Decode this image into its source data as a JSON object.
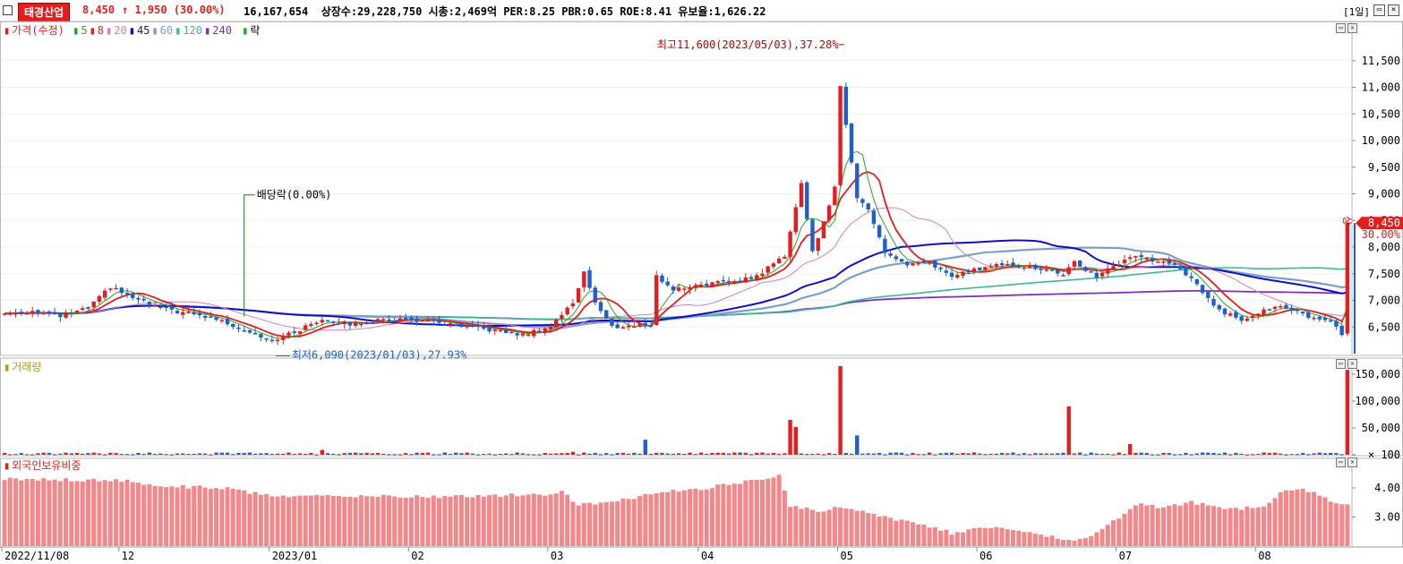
{
  "header": {
    "stock_name": "태경산업",
    "price": "8,450",
    "change_arrow": "↑",
    "change": "1,950",
    "change_pct": "(30.00%)",
    "volume": "16,167,654",
    "stats": "상장수:29,228,750 시총:2,469억 PER:8.25 PBR:0.65 ROE:8.41 유보율:1,626.22",
    "period": "[1일]",
    "colors": {
      "up": "#e41e1e",
      "down": "#1f5fcc"
    }
  },
  "legend": {
    "price_label": "가격(수정)",
    "ma": [
      {
        "label": "5",
        "color": "#22aa22"
      },
      {
        "label": "8",
        "color": "#e41e1e"
      },
      {
        "label": "20",
        "color": "#d080c0"
      },
      {
        "label": "45",
        "color": "#1010c0"
      },
      {
        "label": "60",
        "color": "#7aa0c8"
      },
      {
        "label": "120",
        "color": "#40b898"
      },
      {
        "label": "240",
        "color": "#8030b8"
      }
    ],
    "ex_div_label": "락",
    "volume_label": "거래량",
    "foreign_label": "외국인보유비중"
  },
  "annotations": {
    "high": "최고11,600(2023/05/03),37.28%",
    "low": "최저6,090(2023/01/03),27.93%",
    "ex_div": "배당락(0.00%)",
    "limit_up": "상",
    "last_price_tag": "8,450",
    "last_pct_tag": "30.00%"
  },
  "chart_data": [
    {
      "type": "candlestick",
      "title": "",
      "y_ticks": [
        6500,
        7000,
        7500,
        8000,
        8500,
        9000,
        9500,
        10000,
        10500,
        11000,
        11500
      ],
      "y_tick_labels": [
        "6,500",
        "7,000",
        "7,500",
        "8,000",
        "8,500",
        "9,000",
        "9,500",
        "10,000",
        "10,500",
        "11,000",
        "11,500"
      ],
      "ylim": [
        6000,
        12000
      ],
      "x_labels": [
        "2022/11/08",
        "12",
        "2023/01",
        "02",
        "03",
        "04",
        "05",
        "06",
        "07",
        "08"
      ],
      "x_label_index": [
        0,
        21,
        48,
        73,
        98,
        125,
        150,
        175,
        200,
        225
      ],
      "n": 242,
      "anchors_close": [
        [
          0,
          6750
        ],
        [
          5,
          6800
        ],
        [
          10,
          6700
        ],
        [
          15,
          6850
        ],
        [
          19,
          7250
        ],
        [
          23,
          7050
        ],
        [
          28,
          6850
        ],
        [
          33,
          6750
        ],
        [
          38,
          6650
        ],
        [
          43,
          6450
        ],
        [
          48,
          6250
        ],
        [
          52,
          6400
        ],
        [
          57,
          6650
        ],
        [
          62,
          6550
        ],
        [
          67,
          6620
        ],
        [
          72,
          6650
        ],
        [
          77,
          6600
        ],
        [
          82,
          6500
        ],
        [
          87,
          6450
        ],
        [
          93,
          6350
        ],
        [
          98,
          6520
        ],
        [
          102,
          6950
        ],
        [
          104,
          7550
        ],
        [
          106,
          6950
        ],
        [
          109,
          6500
        ],
        [
          113,
          6520
        ],
        [
          116,
          6550
        ],
        [
          117,
          7450
        ],
        [
          120,
          7200
        ],
        [
          125,
          7300
        ],
        [
          130,
          7350
        ],
        [
          135,
          7450
        ],
        [
          140,
          7850
        ],
        [
          143,
          9200
        ],
        [
          145,
          7900
        ],
        [
          149,
          9100
        ],
        [
          150,
          11000
        ],
        [
          151,
          10300
        ],
        [
          153,
          8950
        ],
        [
          155,
          8700
        ],
        [
          158,
          7900
        ],
        [
          162,
          7650
        ],
        [
          166,
          7700
        ],
        [
          170,
          7450
        ],
        [
          175,
          7600
        ],
        [
          180,
          7700
        ],
        [
          185,
          7600
        ],
        [
          190,
          7500
        ],
        [
          192,
          7700
        ],
        [
          196,
          7450
        ],
        [
          200,
          7700
        ],
        [
          203,
          7850
        ],
        [
          206,
          7750
        ],
        [
          210,
          7650
        ],
        [
          213,
          7400
        ],
        [
          218,
          6800
        ],
        [
          222,
          6650
        ],
        [
          228,
          6900
        ],
        [
          234,
          6700
        ],
        [
          238,
          6600
        ],
        [
          240,
          6380
        ],
        [
          241,
          8450
        ]
      ],
      "volume_ticks": [
        100,
        50000,
        100000,
        150000
      ],
      "volume_tick_labels": [
        "× 100",
        "50,000",
        "100,000",
        "150,000"
      ],
      "volume_ylim": [
        0,
        165000
      ],
      "volume_spikes": [
        [
          57,
          9000
        ],
        [
          102,
          5500
        ],
        [
          115,
          28000
        ],
        [
          138,
          3500
        ],
        [
          141,
          65000
        ],
        [
          142,
          52000
        ],
        [
          150,
          165000
        ],
        [
          153,
          36000
        ],
        [
          191,
          90000
        ],
        [
          202,
          20000
        ],
        [
          241,
          158000
        ]
      ],
      "foreign_ticks": [
        3.0,
        4.0
      ],
      "foreign_tick_labels": [
        "3.00",
        "4.00"
      ],
      "foreign_ylim": [
        2.0,
        4.8
      ],
      "foreign_anchors": [
        [
          0,
          4.3
        ],
        [
          10,
          4.28
        ],
        [
          20,
          4.28
        ],
        [
          30,
          4.05
        ],
        [
          40,
          4.0
        ],
        [
          48,
          3.7
        ],
        [
          60,
          3.72
        ],
        [
          70,
          3.72
        ],
        [
          80,
          3.7
        ],
        [
          90,
          3.75
        ],
        [
          97,
          3.77
        ],
        [
          100,
          3.9
        ],
        [
          103,
          3.4
        ],
        [
          110,
          3.55
        ],
        [
          117,
          3.85
        ],
        [
          125,
          3.98
        ],
        [
          133,
          4.2
        ],
        [
          139,
          4.4
        ],
        [
          141,
          3.4
        ],
        [
          146,
          3.2
        ],
        [
          150,
          3.35
        ],
        [
          158,
          3.0
        ],
        [
          165,
          2.75
        ],
        [
          170,
          2.45
        ],
        [
          178,
          2.7
        ],
        [
          186,
          2.35
        ],
        [
          193,
          2.2
        ],
        [
          197,
          2.55
        ],
        [
          203,
          3.45
        ],
        [
          208,
          3.3
        ],
        [
          213,
          3.5
        ],
        [
          220,
          3.25
        ],
        [
          226,
          3.4
        ],
        [
          230,
          3.95
        ],
        [
          235,
          3.9
        ],
        [
          239,
          3.45
        ],
        [
          241,
          3.42
        ]
      ]
    }
  ]
}
